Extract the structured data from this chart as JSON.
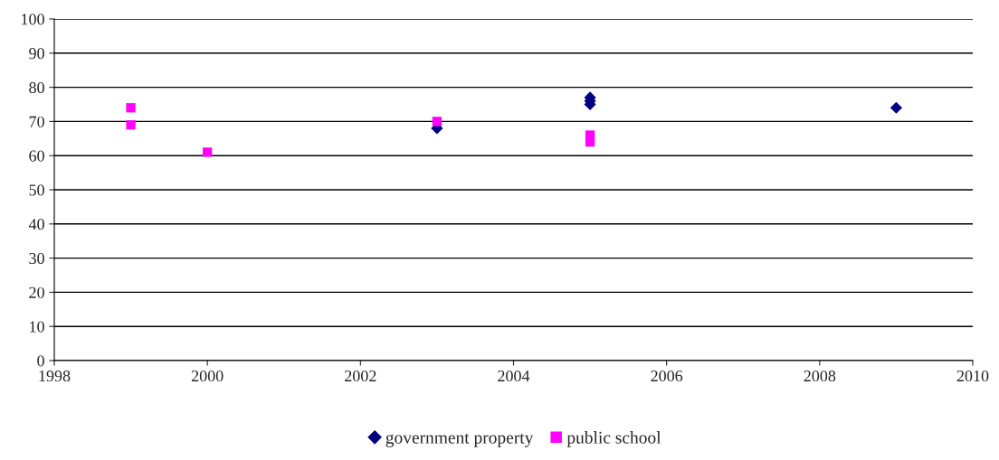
{
  "chart_data": {
    "type": "scatter",
    "series": [
      {
        "name": "government property",
        "color": "#000080",
        "marker": "diamond",
        "x": [
          2003,
          2005,
          2005,
          2005,
          2009
        ],
        "values": [
          68,
          75,
          76,
          77,
          74
        ]
      },
      {
        "name": "public school",
        "color": "#ff00ff",
        "marker": "square",
        "x": [
          1999,
          1999,
          2000,
          2003,
          2005,
          2005
        ],
        "values": [
          74,
          69,
          61,
          70,
          64,
          66
        ]
      }
    ],
    "xlim": [
      1998,
      2010
    ],
    "xticks": [
      1998,
      2000,
      2002,
      2004,
      2006,
      2008,
      2010
    ],
    "ylim": [
      0,
      100
    ],
    "yticks": [
      0,
      10,
      20,
      30,
      40,
      50,
      60,
      70,
      80,
      90,
      100
    ],
    "grid": "y",
    "legend": "bottom"
  }
}
